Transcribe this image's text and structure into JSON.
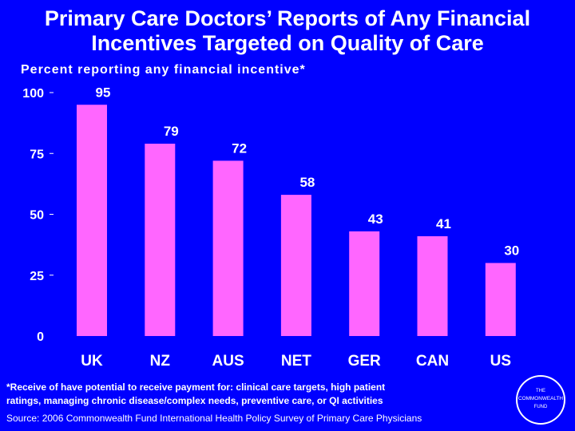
{
  "slide": {
    "title_line1": "Primary Care Doctors’ Reports of Any Financial",
    "title_line2": "Incentives Targeted on Quality of Care",
    "footnote_line1": "*Receive of have potential to receive payment for: clinical care  targets, high patient",
    "footnote_line2": "ratings, managing chronic disease/complex needs, preventive care, or QI activities",
    "source": "Source: 2006 Commonwealth Fund International Health Policy Survey of Primary Care Physicians",
    "logo_line1": "THE",
    "logo_line2": "COMMONWEALTH",
    "logo_line3": "FUND"
  },
  "colors": {
    "background": "#0000ff",
    "bar": "#ff66ff",
    "text": "#ffffff"
  },
  "chart_data": {
    "type": "bar",
    "title": "Primary Care Doctors’ Reports of Any Financial Incentives Targeted on Quality of Care",
    "ylabel": "Percent reporting any financial incentive*",
    "xlabel": "",
    "categories": [
      "UK",
      "NZ",
      "AUS",
      "NET",
      "GER",
      "CAN",
      "US"
    ],
    "values": [
      95,
      79,
      72,
      58,
      43,
      41,
      30
    ],
    "data_labels": [
      "95",
      "79",
      "72",
      "58",
      "43",
      "41",
      "30"
    ],
    "yticks": [
      0,
      25,
      50,
      75,
      100
    ],
    "ytick_labels": [
      "0",
      "25",
      "50",
      "75",
      "100"
    ],
    "ylim": [
      0,
      100
    ],
    "grid": false,
    "legend": "none"
  }
}
